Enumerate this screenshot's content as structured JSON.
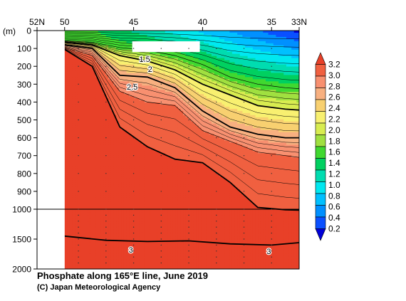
{
  "chart_data": {
    "type": "heatmap",
    "title": "Phosphate along 165°E line, June 2019",
    "credit": "(C) Japan Meteorological Agency",
    "y_unit_label": "(m)",
    "x_tick_labels": [
      "52N",
      "50",
      "45",
      "40",
      "35",
      "33N"
    ],
    "x_ticks": [
      52,
      50,
      45,
      40,
      35,
      33
    ],
    "x_range": [
      52,
      33
    ],
    "y_ticks_upper": [
      0,
      100,
      200,
      300,
      400,
      500,
      600,
      700,
      800,
      900,
      1000
    ],
    "y_ticks_lower": [
      1500,
      2000
    ],
    "y_range": [
      0,
      2000
    ],
    "y_axis_break": 1000,
    "no_data_region": {
      "x_from": 52,
      "x_to": 50,
      "label": ""
    },
    "contour_labels": [
      "1.5",
      "2",
      "2.5",
      "3",
      "3"
    ],
    "colorbar": {
      "levels": [
        0.2,
        0.4,
        0.6,
        0.8,
        1.0,
        1.2,
        1.4,
        1.6,
        1.8,
        2.0,
        2.2,
        2.4,
        2.6,
        2.8,
        3.0,
        3.2
      ],
      "labels": [
        "0.2",
        "0.4",
        "0.6",
        "0.8",
        "1.0",
        "1.2",
        "1.4",
        "1.6",
        "1.8",
        "2.0",
        "2.2",
        "2.4",
        "2.6",
        "2.8",
        "3.0",
        "3.2"
      ],
      "colors": [
        "#0000d8",
        "#0a50ff",
        "#0090ff",
        "#00c0ff",
        "#00e8f0",
        "#00dcb0",
        "#00d060",
        "#40d830",
        "#a0e040",
        "#d8ec50",
        "#f8f070",
        "#f8d070",
        "#f8b080",
        "#f89070",
        "#f06040",
        "#e84028"
      ]
    },
    "series": [
      {
        "level": 1.5,
        "lat": [
          50,
          48,
          46,
          44,
          42,
          40,
          38,
          36,
          34,
          33
        ],
        "depth": [
          55,
          65,
          95,
          110,
          140,
          190,
          260,
          300,
          320,
          325
        ]
      },
      {
        "level": 2.0,
        "lat": [
          50,
          48,
          46,
          44,
          42,
          40,
          38,
          36,
          34,
          33
        ],
        "depth": [
          65,
          80,
          140,
          170,
          220,
          300,
          360,
          420,
          440,
          445
        ]
      },
      {
        "level": 2.5,
        "lat": [
          50,
          48,
          46,
          44,
          42,
          40,
          38,
          36,
          34,
          33
        ],
        "depth": [
          80,
          100,
          250,
          260,
          320,
          450,
          540,
          580,
          600,
          600
        ]
      },
      {
        "level": 2.8,
        "lat": [
          50,
          48,
          46,
          44,
          42,
          40,
          38,
          36,
          34,
          33
        ],
        "depth": [
          95,
          140,
          340,
          400,
          420,
          560,
          620,
          680,
          700,
          710
        ]
      },
      {
        "level": 3.0,
        "lat": [
          50,
          48,
          46,
          44,
          42,
          40,
          38,
          36,
          34,
          33
        ],
        "depth": [
          105,
          200,
          540,
          650,
          720,
          740,
          850,
          990,
          1010,
          1015
        ]
      },
      {
        "level": 3.2,
        "lat": [
          50,
          47,
          44,
          41,
          38,
          35,
          33
        ],
        "depth": [
          1450,
          1520,
          1540,
          1530,
          1580,
          1600,
          1560
        ]
      }
    ]
  }
}
